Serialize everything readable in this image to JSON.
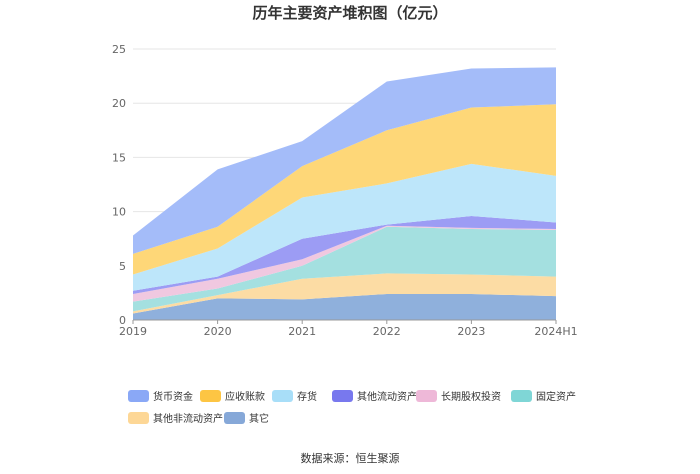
{
  "chart_data": {
    "type": "area",
    "stacked": true,
    "title": "历年主要资产堆积图（亿元）",
    "xlabel": "",
    "ylabel": "",
    "ylim": [
      0,
      25
    ],
    "yticks": [
      "0",
      "5",
      "10",
      "15",
      "20",
      "25"
    ],
    "categories": [
      "2019",
      "2020",
      "2021",
      "2022",
      "2023",
      "2024H1"
    ],
    "grid": true,
    "legend_position": "bottom",
    "series": [
      {
        "name": "其它",
        "color": "#8fb0dc",
        "values": [
          0.6,
          2.0,
          1.9,
          2.4,
          2.4,
          2.2
        ]
      },
      {
        "name": "其他非流动资产",
        "color": "#fcdca4",
        "values": [
          0.2,
          0.3,
          1.9,
          1.9,
          1.8,
          1.8
        ]
      },
      {
        "name": "固定资产",
        "color": "#a4e0e0",
        "values": [
          0.9,
          0.6,
          1.2,
          4.3,
          4.2,
          4.3
        ]
      },
      {
        "name": "长期股权投资",
        "color": "#f0c8e0",
        "values": [
          0.7,
          0.9,
          0.6,
          0.1,
          0.1,
          0.1
        ]
      },
      {
        "name": "其他流动资产",
        "color": "#9c9cf4",
        "values": [
          0.3,
          0.2,
          1.9,
          0.1,
          1.1,
          0.6
        ]
      },
      {
        "name": "存货",
        "color": "#bde6fa",
        "values": [
          1.5,
          2.6,
          3.8,
          3.8,
          4.8,
          4.3
        ]
      },
      {
        "name": "应收账款",
        "color": "#fed778",
        "values": [
          1.9,
          2.0,
          2.9,
          4.9,
          5.2,
          6.6
        ]
      },
      {
        "name": "货币资金",
        "color": "#a4bcf9",
        "values": [
          1.7,
          5.3,
          2.3,
          4.5,
          3.6,
          3.4
        ]
      }
    ]
  },
  "legend": [
    {
      "name": "货币资金",
      "color": "#8aa8f6"
    },
    {
      "name": "应收账款",
      "color": "#fdc543"
    },
    {
      "name": "存货",
      "color": "#a8def8"
    },
    {
      "name": "其他流动资产",
      "color": "#7878ee"
    },
    {
      "name": "长期股权投资",
      "color": "#eeb8d8"
    },
    {
      "name": "固定资产",
      "color": "#7fd6d6"
    },
    {
      "name": "其他非流动资产",
      "color": "#fdd796"
    },
    {
      "name": "其它",
      "color": "#86a8d8"
    }
  ],
  "source": "数据来源：恒生聚源"
}
